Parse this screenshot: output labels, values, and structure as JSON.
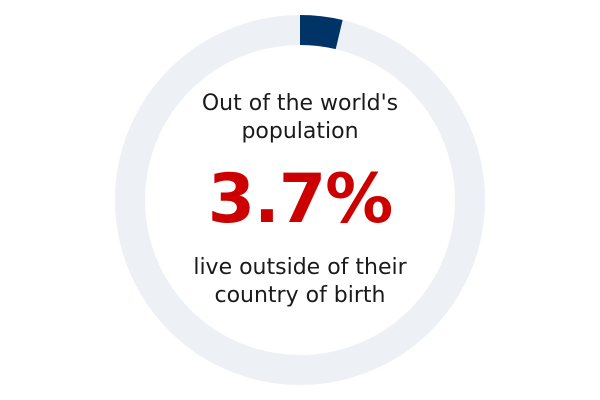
{
  "chart_data": {
    "type": "pie",
    "variant": "donut",
    "slices": [
      {
        "value": 3.7,
        "color": "#003366"
      },
      {
        "value": 96.3,
        "color": "#edf0f5"
      }
    ],
    "center": {
      "line1": "Out of the world's",
      "line2": "population",
      "value_label": "3.7%",
      "line3": "live outside of their",
      "line4": "country of birth"
    }
  },
  "colors": {
    "highlight": "#003366",
    "track": "#edf0f5",
    "value_text": "#cc0000",
    "body_text": "#1a1a1a"
  }
}
